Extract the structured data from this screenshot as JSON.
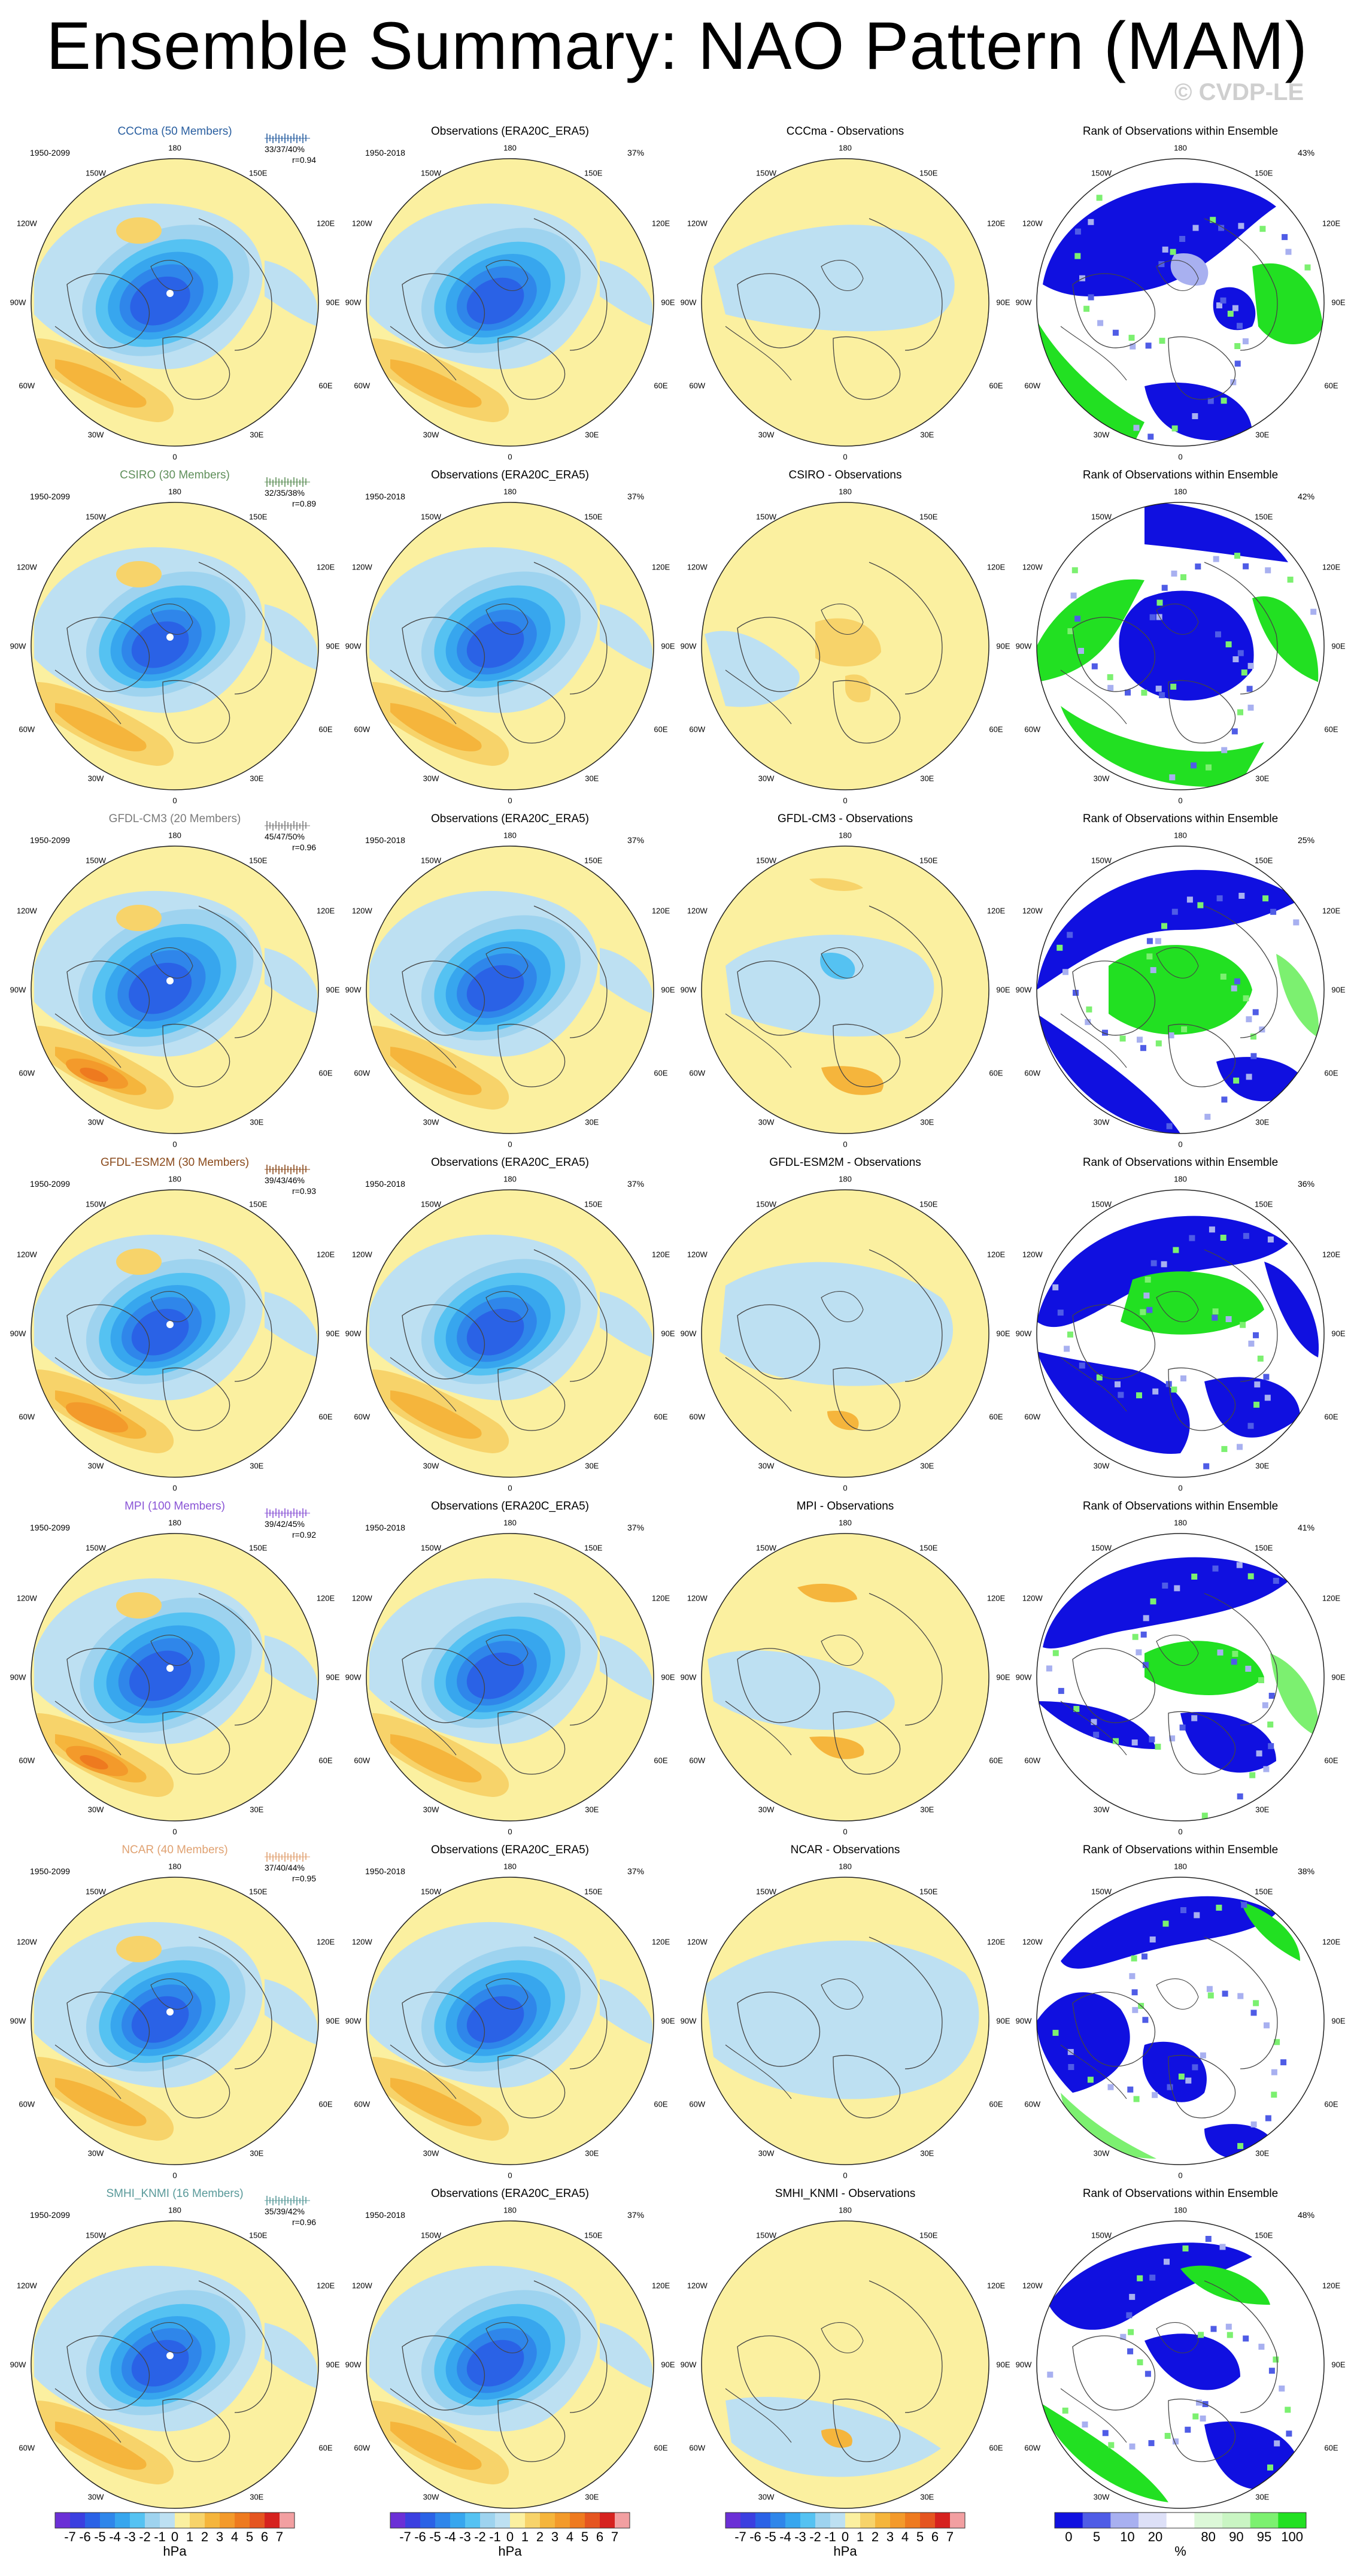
{
  "title": "Ensemble Summary: NAO Pattern (MAM)",
  "watermark": "© CVDP-LE",
  "colors": {
    "neg": [
      "#6b2fd6",
      "#3b3fe0",
      "#2a62e6",
      "#2f86ea",
      "#37a6ee",
      "#55c2f2",
      "#9ed3ef",
      "#bde0f2"
    ],
    "pos": [
      "#fbf0a0",
      "#f7d36a",
      "#f5b53c",
      "#f39a2b",
      "#ee7a1f",
      "#e55520",
      "#d6221f",
      "#f29fa1"
    ],
    "rank": [
      "#1010e0",
      "#4f5ce6",
      "#a8b0f0",
      "#ffffff",
      "#c9f5c3",
      "#7cf070",
      "#22e022"
    ]
  },
  "lon_labels": {
    "top": "180",
    "tl": "150W",
    "tr": "150E",
    "ul": "120W",
    "ur": "120E",
    "l": "90W",
    "r": "90E",
    "ll": "60W",
    "lr": "60E",
    "bl": "30W",
    "br": "30E",
    "bottom": "0"
  },
  "col_headers": {
    "obs": "Observations (ERA20C_ERA5)",
    "rank": "Rank of Observations within Ensemble"
  },
  "rows": [
    {
      "model": "CCCma (50 Members)",
      "color": "#2a5fa0",
      "model_period": "1950-2099",
      "stats": "33/37/40%",
      "r": "r=0.94",
      "obs_period": "1950-2018",
      "obs_pct": "37%",
      "diff": "CCCma - Observations",
      "rank_pct": "43%"
    },
    {
      "model": "CSIRO (30 Members)",
      "color": "#5f8f5a",
      "model_period": "1950-2099",
      "stats": "32/35/38%",
      "r": "r=0.89",
      "obs_period": "1950-2018",
      "obs_pct": "37%",
      "diff": "CSIRO - Observations",
      "rank_pct": "42%"
    },
    {
      "model": "GFDL-CM3 (20 Members)",
      "color": "#7a7a7a",
      "model_period": "1950-2099",
      "stats": "45/47/50%",
      "r": "r=0.96",
      "obs_period": "1950-2018",
      "obs_pct": "37%",
      "diff": "GFDL-CM3 - Observations",
      "rank_pct": "25%"
    },
    {
      "model": "GFDL-ESM2M (30 Members)",
      "color": "#8a4a1c",
      "model_period": "1950-2099",
      "stats": "39/43/46%",
      "r": "r=0.93",
      "obs_period": "1950-2018",
      "obs_pct": "37%",
      "diff": "GFDL-ESM2M - Observations",
      "rank_pct": "36%"
    },
    {
      "model": "MPI (100 Members)",
      "color": "#8a55d6",
      "model_period": "1950-2099",
      "stats": "39/42/45%",
      "r": "r=0.92",
      "obs_period": "1950-2018",
      "obs_pct": "37%",
      "diff": "MPI - Observations",
      "rank_pct": "41%"
    },
    {
      "model": "NCAR (40 Members)",
      "color": "#e0a272",
      "model_period": "1950-2099",
      "stats": "37/40/44%",
      "r": "r=0.95",
      "obs_period": "1950-2018",
      "obs_pct": "37%",
      "diff": "NCAR - Observations",
      "rank_pct": "38%"
    },
    {
      "model": "SMHI_KNMI (16 Members)",
      "color": "#5a9a9a",
      "model_period": "1950-2099",
      "stats": "35/39/42%",
      "r": "r=0.96",
      "obs_period": "1950-2018",
      "obs_pct": "37%",
      "diff": "SMHI_KNMI - Observations",
      "rank_pct": "48%"
    }
  ],
  "colorbar": {
    "ticks": [
      "-7",
      "-6",
      "-5",
      "-4",
      "-3",
      "-2",
      "-1",
      "0",
      "1",
      "2",
      "3",
      "4",
      "5",
      "6",
      "7"
    ],
    "unit": "hPa",
    "rank_ticks": [
      "0",
      "5",
      "10",
      "20",
      "80",
      "90",
      "95",
      "100"
    ],
    "rank_unit": "%"
  }
}
